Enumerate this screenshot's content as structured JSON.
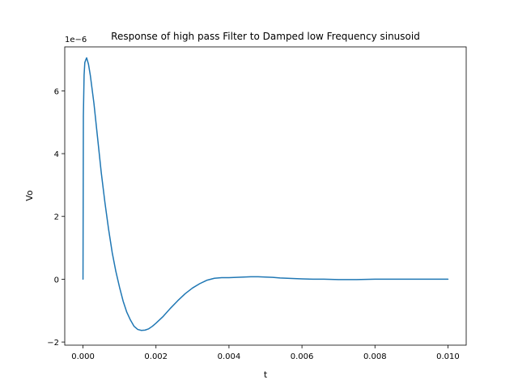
{
  "chart_data": {
    "type": "line",
    "title": "Response of high pass Filter to Damped low Frequency sinusoid",
    "xlabel": "t",
    "ylabel": "Vo",
    "y_offset_text": "1e−6",
    "xlim": [
      -0.0005,
      0.0105
    ],
    "ylim": [
      -2.1,
      7.4
    ],
    "x_ticks": [
      0.0,
      0.002,
      0.004,
      0.006,
      0.008,
      0.01
    ],
    "x_tick_labels": [
      "0.000",
      "0.002",
      "0.004",
      "0.006",
      "0.008",
      "0.010"
    ],
    "y_ticks": [
      -2,
      0,
      2,
      4,
      6
    ],
    "y_tick_labels": [
      "−2",
      "0",
      "2",
      "4",
      "6"
    ],
    "grid": false,
    "color": "#1f77b4",
    "series": [
      {
        "x": [
          0,
          1e-05,
          3e-05,
          5e-05,
          8e-05,
          0.0001,
          0.00015,
          0.0002,
          0.0003,
          0.0004,
          0.0005,
          0.0006,
          0.0007,
          0.0008,
          0.0009,
          0.001,
          0.0011,
          0.0012,
          0.0013,
          0.0014,
          0.0015,
          0.0016,
          0.0017,
          0.0018,
          0.0019,
          0.002,
          0.0022,
          0.0024,
          0.0026,
          0.0028,
          0.003,
          0.0032,
          0.0034,
          0.0036,
          0.0038,
          0.004,
          0.0042,
          0.0044,
          0.0046,
          0.0048,
          0.005,
          0.0052,
          0.0054,
          0.0056,
          0.0058,
          0.006,
          0.0063,
          0.0066,
          0.007,
          0.0075,
          0.008,
          0.0085,
          0.009,
          0.0095,
          0.01
        ],
        "y": [
          0,
          5.2,
          6.5,
          6.9,
          7.0,
          7.05,
          6.85,
          6.5,
          5.6,
          4.5,
          3.4,
          2.45,
          1.6,
          0.85,
          0.25,
          -0.25,
          -0.7,
          -1.05,
          -1.3,
          -1.5,
          -1.6,
          -1.63,
          -1.62,
          -1.58,
          -1.5,
          -1.4,
          -1.18,
          -0.92,
          -0.68,
          -0.46,
          -0.28,
          -0.14,
          -0.03,
          0.03,
          0.05,
          0.05,
          0.06,
          0.07,
          0.08,
          0.08,
          0.07,
          0.06,
          0.04,
          0.03,
          0.02,
          0.01,
          0.0,
          0.0,
          -0.01,
          -0.01,
          0.0,
          0.0,
          0.0,
          0.0,
          0.0
        ]
      }
    ]
  }
}
